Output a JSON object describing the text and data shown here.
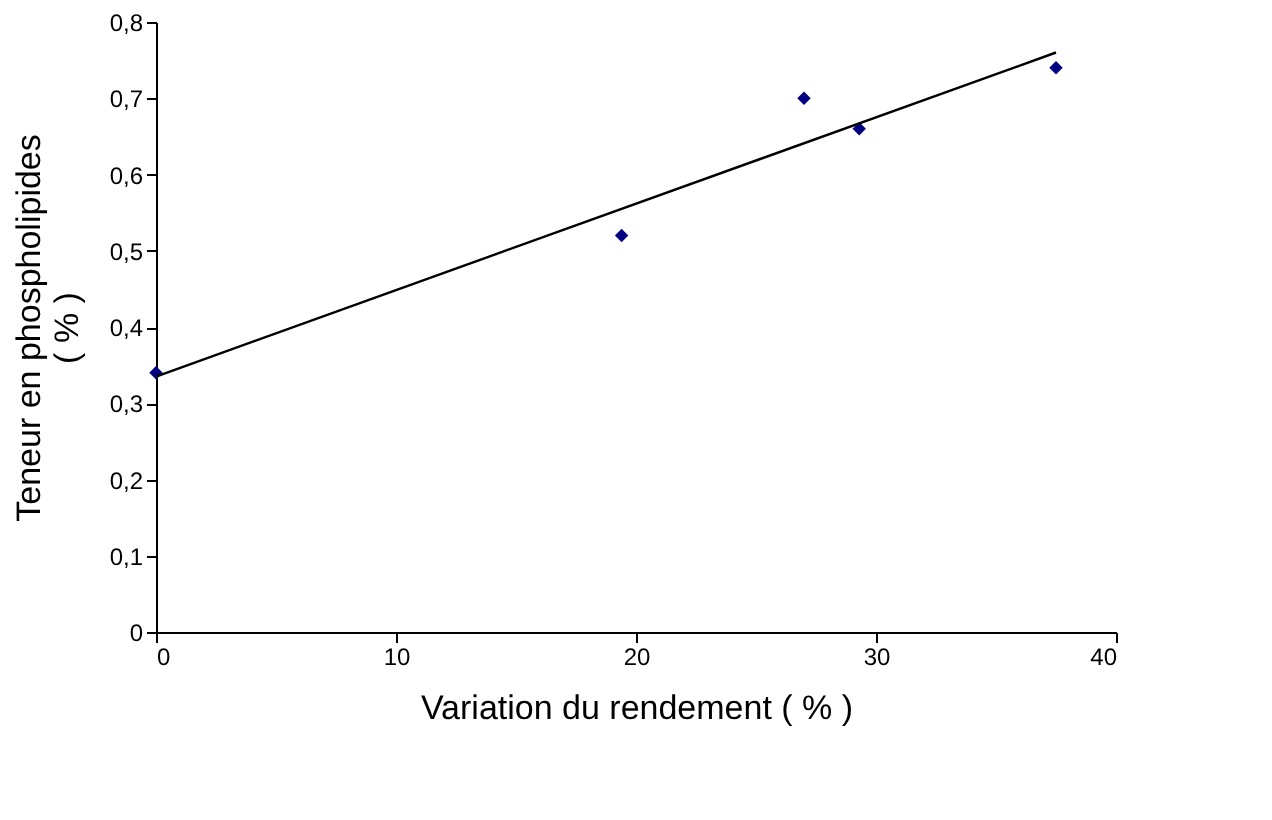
{
  "chart_data": {
    "type": "scatter",
    "xlabel": "Variation du rendement ( % )",
    "ylabel": "Teneur en phospholipides\n( % )",
    "xlim": [
      0,
      40
    ],
    "xticks": [
      0,
      10,
      20,
      30,
      40
    ],
    "ylim": [
      0,
      0.8
    ],
    "yticks": [
      0,
      {
        "value": 0.1,
        "label": "0,1"
      },
      {
        "value": 0.2,
        "label": "0,2"
      },
      {
        "value": 0.3,
        "label": "0,3"
      },
      {
        "value": 0.4,
        "label": "0,4"
      },
      {
        "value": 0.5,
        "label": "0,5"
      },
      {
        "value": 0.6,
        "label": "0,6"
      },
      {
        "value": 0.7,
        "label": "0,7"
      },
      {
        "value": 0.8,
        "label": "0,8"
      }
    ],
    "grid": false,
    "legend": false,
    "series": [
      {
        "type": "scatter",
        "color": "#000080",
        "marker": "diamond",
        "x": [
          0,
          19.4,
          27,
          29.3,
          37.5
        ],
        "values": [
          0.34,
          0.52,
          0.7,
          0.66,
          0.74
        ]
      },
      {
        "type": "line",
        "color": "#000000",
        "marker": "none",
        "line_style": "solid",
        "x": [
          0,
          37.5
        ],
        "values": [
          0.335,
          0.76
        ]
      }
    ]
  }
}
